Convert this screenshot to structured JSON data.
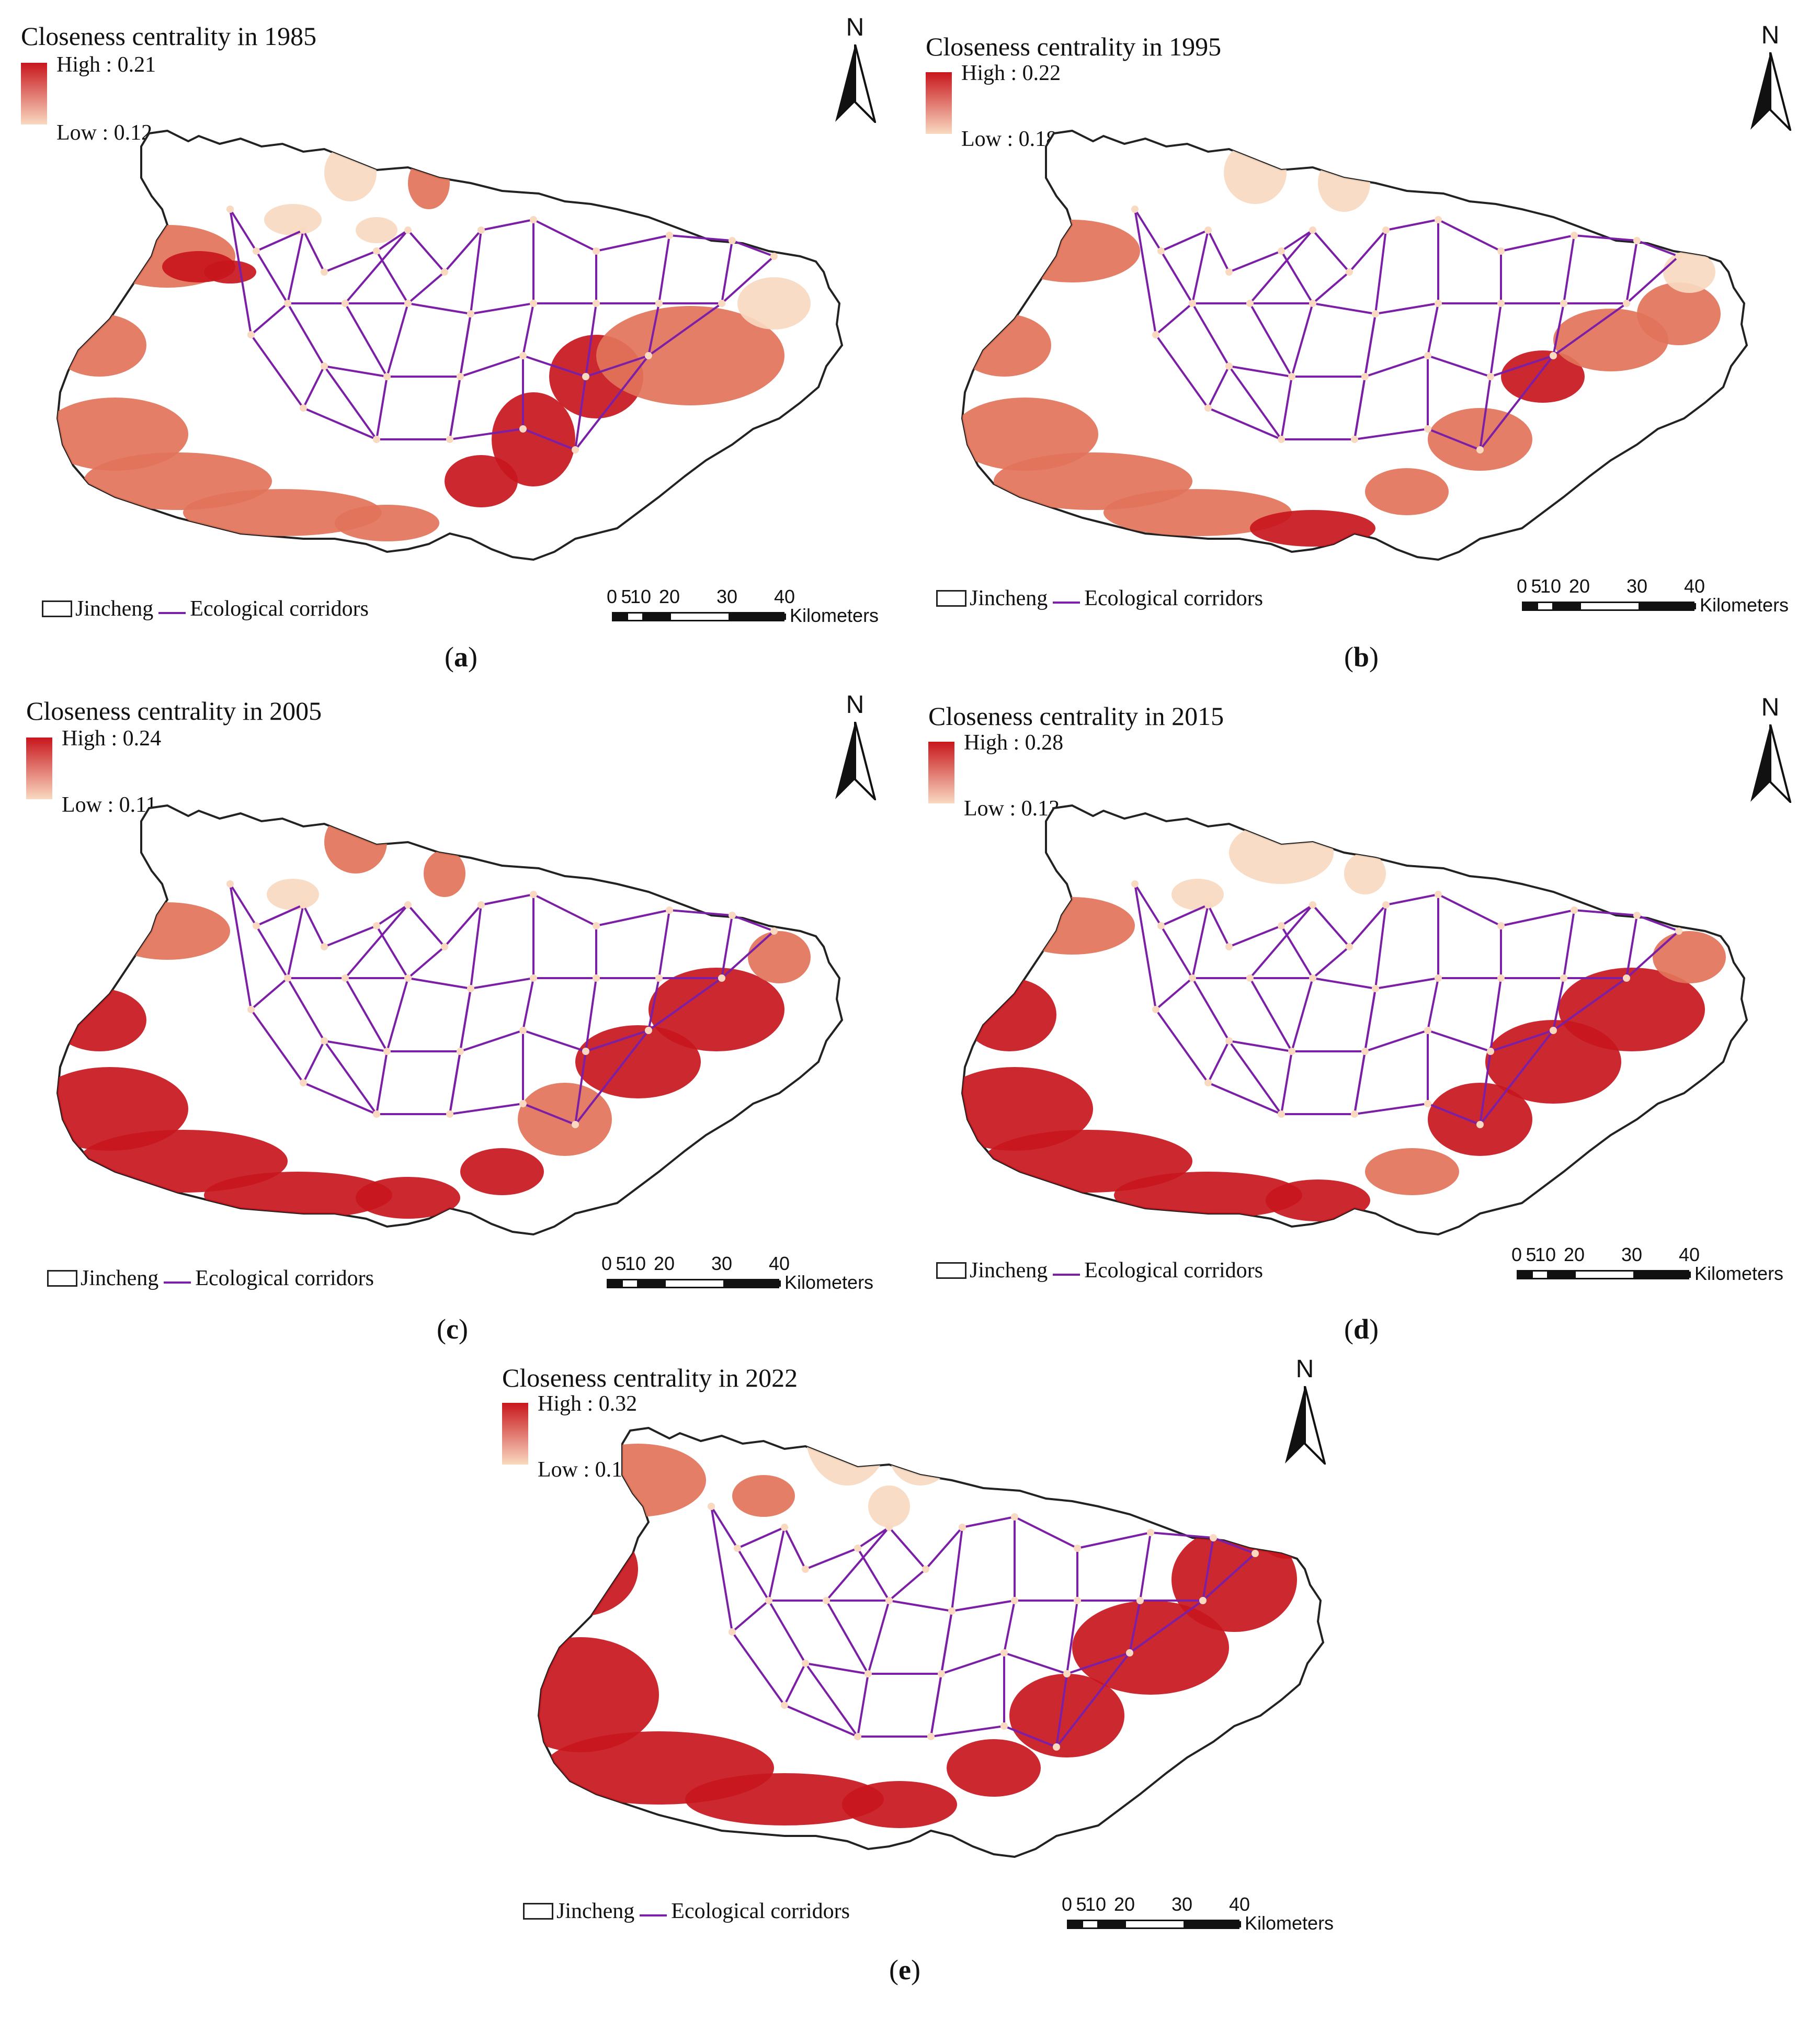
{
  "legend_common": {
    "boundary_label": "Jincheng",
    "corridor_label": "Ecological corridors",
    "scale_ticks": [
      "0",
      "5",
      "10",
      "20",
      "30",
      "40"
    ],
    "scale_unit": "Kilometers",
    "north_letter": "N"
  },
  "colors": {
    "high": "#c8161d",
    "mid": "#e2735a",
    "low": "#f9d9c0",
    "corridor": "#7a1fa6",
    "boundary": "#222222"
  },
  "panels": [
    {
      "id": "a",
      "title": "Closeness centrality in 1985",
      "high": "High : 0.21",
      "low": "Low : 0.12",
      "label_open": "(",
      "label": "a",
      "label_close": ")"
    },
    {
      "id": "b",
      "title": "Closeness centrality in 1995",
      "high": "High : 0.22",
      "low": "Low : 0.18",
      "label_open": "(",
      "label": "b",
      "label_close": ")"
    },
    {
      "id": "c",
      "title": "Closeness centrality in 2005",
      "high": "High : 0.24",
      "low": "Low : 0.11",
      "label_open": "(",
      "label": "c",
      "label_close": ")"
    },
    {
      "id": "d",
      "title": "Closeness centrality in 2015",
      "high": "High : 0.28",
      "low": "Low : 0.13",
      "label_open": "(",
      "label": "d",
      "label_close": ")"
    },
    {
      "id": "e",
      "title": "Closeness centrality in 2022",
      "high": "High : 0.32",
      "low": "Low : 0.14",
      "label_open": "(",
      "label": "e",
      "label_close": ")"
    }
  ]
}
